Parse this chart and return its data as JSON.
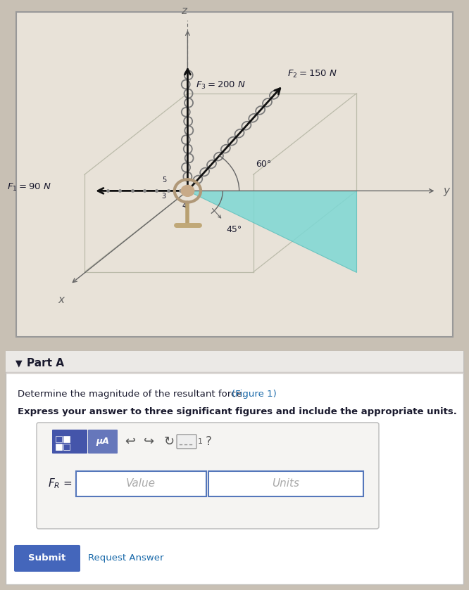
{
  "bg_page": "#c8c0b4",
  "bg_diagram_inner": "#e8e2d8",
  "bg_bottom_panel": "#f0eeec",
  "bg_bottom_outer": "#d0ccc8",
  "diagram_border": "#999999",
  "cyan_fill": "#7dd8d4",
  "cyan_edge": "#60c0bc",
  "axis_color": "#666666",
  "arrow_color": "#111111",
  "box_line_color": "#bbbbaa",
  "chain_color": "#7a7a7a",
  "label_F3": "$F_3 = 200$ N",
  "label_F2": "$F_2 = 150$ N",
  "label_F1": "$F_1 = 90$ N",
  "label_y": "y",
  "label_x": "x",
  "label_z": "z",
  "angle_60": "60°",
  "angle_45": "45°",
  "part_label": "Part A",
  "question_line1a": "Determine the magnitude of the resultant force. ",
  "question_link": "(Figure 1)",
  "question_line2": "Express your answer to three significant figures and include the appropriate units.",
  "FR_label": "$F_R$ =",
  "value_placeholder": "Value",
  "units_placeholder": "Units",
  "btn_submit": "Submit",
  "btn_request": "Request Answer",
  "text_dark": "#1a1a2e",
  "text_blue_q": "#1a3a6e",
  "text_link": "#1a6aaa",
  "text_gray": "#aaaaaa",
  "toolbar_dark_bg": "#4455aa",
  "toolbar_light_bg": "#6677bb",
  "input_border": "#5577bb",
  "submit_bg": "#4466bb",
  "panel_bg": "#f8f7f5",
  "panel_border": "#bbbbbb"
}
